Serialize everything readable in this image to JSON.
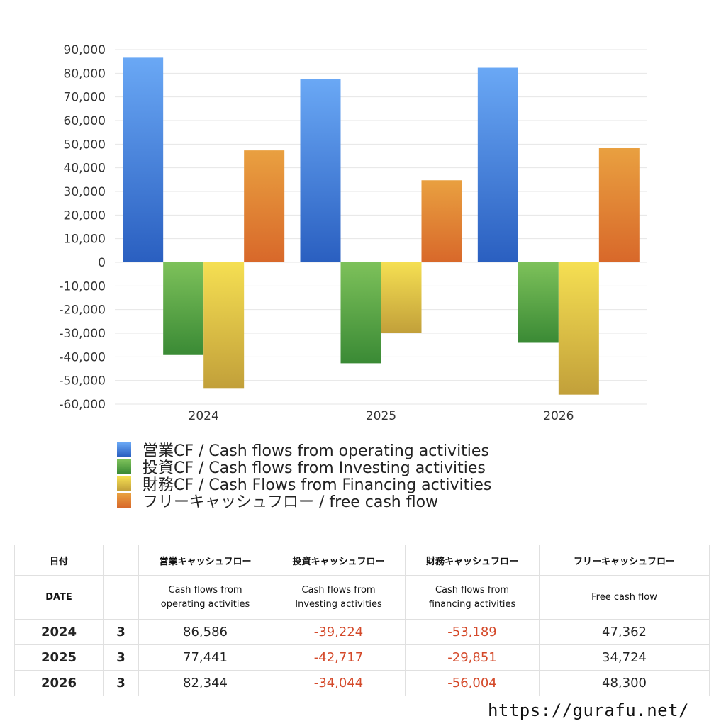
{
  "chart_data": {
    "type": "bar",
    "categories": [
      "2024",
      "2025",
      "2026"
    ],
    "ylim": [
      -60000,
      90000
    ],
    "yticks": [
      90000,
      80000,
      70000,
      60000,
      50000,
      40000,
      30000,
      20000,
      10000,
      0,
      -10000,
      -20000,
      -30000,
      -40000,
      -50000,
      -60000
    ],
    "ytick_labels": [
      "90,000",
      "80,000",
      "70,000",
      "60,000",
      "50,000",
      "40,000",
      "30,000",
      "20,000",
      "10,000",
      "0",
      "-10,000",
      "-20,000",
      "-30,000",
      "-40,000",
      "-50,000",
      "-60,000"
    ],
    "grid": true,
    "legend_position": "bottom",
    "series": [
      {
        "name": "営業CF / Cash flows from operating activities",
        "values": [
          86586,
          77441,
          82344
        ],
        "color": "#3a7bd5",
        "color_top": "#6aa8f5",
        "color_bottom": "#2a5fc0"
      },
      {
        "name": "投資CF / Cash flows from Investing activities",
        "values": [
          -39224,
          -42717,
          -34044
        ],
        "color": "#4e9e3e",
        "color_top": "#7dc15a",
        "color_bottom": "#3a8a35"
      },
      {
        "name": "財務CF / Cash Flows from Financing activities",
        "values": [
          -53189,
          -29851,
          -56004
        ],
        "color": "#e8cf45",
        "color_top": "#f5df52",
        "color_bottom": "#c2a03a"
      },
      {
        "name": "フリーキャッシュフロー / free cash flow",
        "values": [
          47362,
          34724,
          48300
        ],
        "color": "#e08a35",
        "color_top": "#e9a040",
        "color_bottom": "#d8682a"
      }
    ]
  },
  "table": {
    "header_jp": [
      "日付",
      "",
      "営業キャッシュフロー",
      "投資キャッシュフロー",
      "財務キャッシュフロー",
      "フリーキャッシュフロー"
    ],
    "header_en": [
      "DATE",
      "",
      "Cash flows from\noperating activities",
      "Cash flows from\nInvesting activities",
      "Cash flows from\nfinancing activities",
      "Free cash flow"
    ],
    "rows": [
      {
        "year": "2024",
        "month": "3",
        "op": "86,586",
        "inv": "-39,224",
        "fin": "-53,189",
        "free": "47,362"
      },
      {
        "year": "2025",
        "month": "3",
        "op": "77,441",
        "inv": "-42,717",
        "fin": "-29,851",
        "free": "34,724"
      },
      {
        "year": "2026",
        "month": "3",
        "op": "82,344",
        "inv": "-34,044",
        "fin": "-56,004",
        "free": "48,300"
      }
    ]
  },
  "footer": {
    "url": "https://gurafu.net/"
  }
}
